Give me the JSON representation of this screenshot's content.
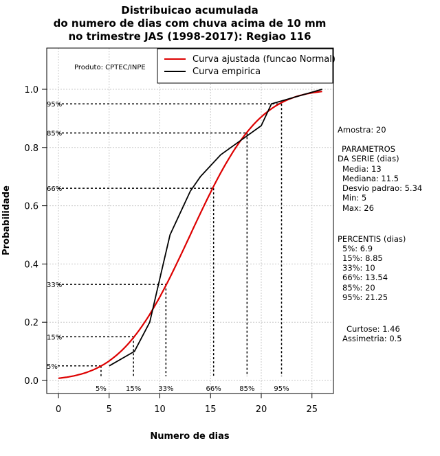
{
  "chart_data": {
    "type": "line",
    "title": [
      "Distribuicao acumulada",
      "do numero de dias com chuva acima de 10 mm",
      "no trimestre JAS (1998-2017): Regiao 116"
    ],
    "xlabel": "Numero de dias",
    "ylabel": "Probabilidade",
    "xlim": [
      -1,
      26.5
    ],
    "ylim": [
      -0.05,
      1.15
    ],
    "xticks": [
      0,
      5,
      10,
      15,
      20,
      25
    ],
    "yticks": [
      0.0,
      0.2,
      0.4,
      0.6,
      0.8,
      1.0
    ],
    "ytick_labels": [
      "0.0",
      "0.2",
      "0.4",
      "0.6",
      "0.8",
      "1.0"
    ],
    "grid": true,
    "product_label": "Produto: CPTEC/INPE",
    "legend": {
      "position": "top-right",
      "entries": [
        {
          "label": "Curva ajustada (funcao Normal)",
          "color": "#dd0000"
        },
        {
          "label": "Curva empirica",
          "color": "#000000"
        }
      ]
    },
    "series": [
      {
        "name": "Curva ajustada (funcao Normal)",
        "color": "#dd0000",
        "distribution": "normal",
        "mean": 13,
        "sd": 5.34,
        "x_range": [
          0,
          26
        ]
      },
      {
        "name": "Curva empirica",
        "color": "#000000",
        "x": [
          5,
          7.5,
          9,
          10,
          11,
          13,
          14,
          16,
          18,
          20,
          21,
          22,
          26
        ],
        "y": [
          0.05,
          0.1,
          0.2,
          0.35,
          0.5,
          0.65,
          0.7,
          0.775,
          0.825,
          0.875,
          0.95,
          0.96,
          1.0
        ]
      }
    ],
    "percentile_markers": [
      {
        "label": "5%",
        "p": 0.05,
        "x": 4.2
      },
      {
        "label": "15%",
        "p": 0.15,
        "x": 7.4
      },
      {
        "label": "33%",
        "p": 0.33,
        "x": 10.6
      },
      {
        "label": "66%",
        "p": 0.66,
        "x": 15.3
      },
      {
        "label": "85%",
        "p": 0.85,
        "x": 18.6
      },
      {
        "label": "95%",
        "p": 0.95,
        "x": 22.0
      }
    ]
  },
  "stats": {
    "amostra": "Amostra: 20",
    "parametros_title": "PARAMETROS",
    "parametros_subtitle": "DA SERIE (dias)",
    "parametros": [
      "Media: 13",
      "Mediana: 11.5",
      "Desvio padrao: 5.34",
      "Min: 5",
      "Max: 26"
    ],
    "percentis_title": "PERCENTIS (dias)",
    "percentis": [
      "5%: 6.9",
      "15%: 8.85",
      "33%: 10",
      "66%: 13.54",
      "85%: 20",
      "95%: 21.25"
    ],
    "curtose": "Curtose: 1.46",
    "assimetria": "Assimetria: 0.5"
  }
}
